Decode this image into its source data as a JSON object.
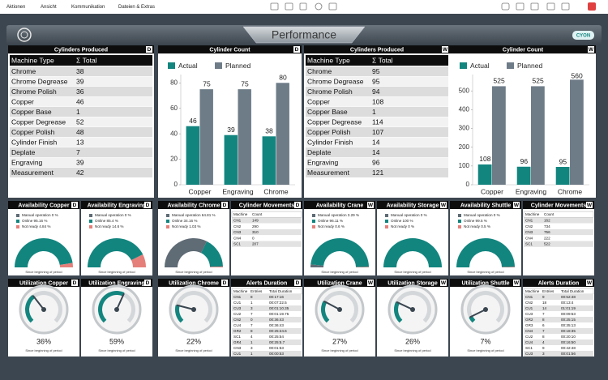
{
  "menu": [
    "Aktionen",
    "Ansicht",
    "Kommunikation",
    "Dateien & Extras"
  ],
  "header": {
    "title": "Performance",
    "badge": "CYON"
  },
  "tables": [
    {
      "title": "Cylinders Produced",
      "badge": "D",
      "columns": [
        "Machine Type",
        "Σ Total"
      ],
      "rows": [
        [
          "Chrome",
          38
        ],
        [
          "Chrome Degrease",
          39
        ],
        [
          "Chrome Polish",
          36
        ],
        [
          "Copper",
          46
        ],
        [
          "Copper Base",
          1
        ],
        [
          "Copper Degrease",
          52
        ],
        [
          "Copper Polish",
          48
        ],
        [
          "Cylinder Finish",
          13
        ],
        [
          "Deplate",
          7
        ],
        [
          "Engraving",
          39
        ],
        [
          "Measurement",
          42
        ]
      ]
    },
    {
      "title": "Cylinders Produced",
      "badge": "W",
      "columns": [
        "Machine Type",
        "Σ Total"
      ],
      "rows": [
        [
          "Chrome",
          95
        ],
        [
          "Chrome Degrease",
          95
        ],
        [
          "Chrome Polish",
          94
        ],
        [
          "Copper",
          108
        ],
        [
          "Copper Base",
          1
        ],
        [
          "Copper Degrease",
          114
        ],
        [
          "Copper Polish",
          107
        ],
        [
          "Cylinder Finish",
          14
        ],
        [
          "Deplate",
          14
        ],
        [
          "Engraving",
          96
        ],
        [
          "Measurement",
          121
        ]
      ]
    }
  ],
  "bar_charts": [
    {
      "type": "bar",
      "title": "Cylinder Count",
      "badge": "D",
      "categories": [
        "Copper",
        "Engraving",
        "Chrome"
      ],
      "series": [
        {
          "name": "Actual",
          "color": "#13857f",
          "values": [
            46,
            39,
            38
          ]
        },
        {
          "name": "Planned",
          "color": "#6e7c88",
          "values": [
            75,
            75,
            80
          ]
        }
      ],
      "ylim": [
        0,
        84
      ],
      "yticks": [
        0,
        20,
        40,
        60,
        80
      ]
    },
    {
      "type": "bar",
      "title": "Cylinder Count",
      "badge": "W",
      "categories": [
        "Copper",
        "Engraving",
        "Chrome"
      ],
      "series": [
        {
          "name": "Actual",
          "color": "#13857f",
          "values": [
            108,
            96,
            95
          ]
        },
        {
          "name": "Planned",
          "color": "#6e7c88",
          "values": [
            525,
            525,
            560
          ]
        }
      ],
      "ylim": [
        0,
        570
      ],
      "yticks": [
        0,
        100,
        200,
        300,
        400,
        500
      ]
    }
  ],
  "availability_colors": [
    "#5f6b75",
    "#13857f",
    "#e57f7a"
  ],
  "availability": [
    {
      "title": "Availability Copper",
      "badge": "D",
      "range": [
        0,
        100
      ],
      "values": [
        0,
        95.16,
        4.84
      ],
      "value_labels": [
        "Manual operation 0 %",
        "Online 95.16 %",
        "Not ready 4.84 %"
      ],
      "caption": "Since beginning of period"
    },
    {
      "title": "Availability Engraving",
      "badge": "D",
      "range": [
        0,
        100
      ],
      "values": [
        0,
        85.4,
        14.6
      ],
      "value_labels": [
        "Manual operation 0 %",
        "Online 85.4 %",
        "Not ready 14.6 %"
      ],
      "caption": "Since beginning of period"
    },
    {
      "title": "Availability Chrome",
      "badge": "D",
      "range": [
        0,
        100
      ],
      "values": [
        64.81,
        34.16,
        1.03
      ],
      "value_labels": [
        "Manual operation 64.81 %",
        "Online 34.16 %",
        "Not ready 1.03 %"
      ],
      "caption": "Since beginning of period"
    },
    {
      "title": "Availability Crane",
      "badge": "W",
      "range": [
        0,
        100
      ],
      "values": [
        3.29,
        96.11,
        0.6
      ],
      "value_labels": [
        "Manual operation 3.29 %",
        "Online 96.11 %",
        "Not ready 0.6 %"
      ],
      "caption": "Since beginning of period"
    },
    {
      "title": "Availability Storage",
      "badge": "W",
      "range": [
        0,
        100
      ],
      "values": [
        0,
        100,
        0
      ],
      "value_labels": [
        "Manual operation 0 %",
        "Online 100 %",
        "Not ready 0 %"
      ],
      "caption": "Since beginning of period"
    },
    {
      "title": "Availability Shuttle",
      "badge": "W",
      "range": [
        0,
        100
      ],
      "values": [
        0,
        99.5,
        0.5
      ],
      "value_labels": [
        "Manual operation 0 %",
        "Online 99.5 %",
        "Not ready 0.5 %"
      ],
      "caption": "Since beginning of period"
    }
  ],
  "movements": [
    {
      "title": "Cylinder Movements",
      "badge": "D",
      "columns": [
        "Machine",
        "Count"
      ],
      "rows": [
        [
          "CN1",
          149
        ],
        [
          "CN2",
          290
        ],
        [
          "CN3",
          310
        ],
        [
          "CN4",
          0
        ],
        [
          "SC1",
          207
        ]
      ]
    },
    {
      "title": "Cylinder Movements",
      "badge": "W",
      "columns": [
        "Machine",
        "Count"
      ],
      "rows": [
        [
          "CN1",
          162
        ],
        [
          "CN2",
          734
        ],
        [
          "CN3",
          756
        ],
        [
          "CN4",
          222
        ],
        [
          "SC1",
          522
        ]
      ]
    }
  ],
  "utilization": [
    {
      "title": "Utilization Copper",
      "badge": "D",
      "range": [
        0,
        100
      ],
      "value": 36,
      "value_label": "36%",
      "caption": "Since beginning of period"
    },
    {
      "title": "Utilization Engraving",
      "badge": "D",
      "range": [
        0,
        100
      ],
      "value": 59,
      "value_label": "59%",
      "caption": "Since beginning of period"
    },
    {
      "title": "Utilization Chrome",
      "badge": "D",
      "range": [
        0,
        100
      ],
      "value": 22,
      "value_label": "22%",
      "caption": "Since beginning of period"
    },
    {
      "title": "Utilization Crane",
      "badge": "W",
      "range": [
        0,
        100
      ],
      "value": 27,
      "value_label": "27%",
      "caption": "Since beginning of period"
    },
    {
      "title": "Utilization Storage",
      "badge": "W",
      "range": [
        0,
        100
      ],
      "value": 26,
      "value_label": "26%",
      "caption": "Since beginning of period"
    },
    {
      "title": "Utilization Shuttle",
      "badge": "W",
      "range": [
        0,
        100
      ],
      "value": 7,
      "value_label": "7%",
      "caption": "Since beginning of period"
    }
  ],
  "alerts": [
    {
      "title": "Alerts Duration",
      "badge": "D",
      "columns": [
        "Machine",
        "Entries",
        "Total Duration"
      ],
      "rows": [
        [
          "CN1",
          8,
          "00:17:16"
        ],
        [
          "CU1",
          1,
          "00:07:22.5"
        ],
        [
          "CU3",
          3,
          "00:01:10.35"
        ],
        [
          "CU2",
          7,
          "00:01:19.75"
        ],
        [
          "CN2",
          0,
          "00:36:43"
        ],
        [
          "CU4",
          7,
          "00:36:43"
        ],
        [
          "GR2",
          8,
          "00:25:24.6"
        ],
        [
          "SC1",
          4,
          "00:25:54"
        ],
        [
          "GR4",
          1,
          "00:25:5.7"
        ],
        [
          "CN3",
          3,
          "00:01:53"
        ],
        [
          "CU1",
          1,
          "00:00:53"
        ]
      ]
    },
    {
      "title": "Alerts Duration",
      "badge": "W",
      "columns": [
        "Machine",
        "Entries",
        "Total Duration"
      ],
      "rows": [
        [
          "CN1",
          9,
          "00:52:48"
        ],
        [
          "CN2",
          18,
          "00:13:4"
        ],
        [
          "CU1",
          14,
          "01:01:19"
        ],
        [
          "CU3",
          7,
          "00:09:53"
        ],
        [
          "GR2",
          8,
          "00:25:15"
        ],
        [
          "GR3",
          6,
          "00:35:13"
        ],
        [
          "CN4",
          7,
          "00:18:35"
        ],
        [
          "CU2",
          8,
          "00:20:10"
        ],
        [
          "CU4",
          4,
          "00:16:50"
        ],
        [
          "SC1",
          9,
          "00:42:48"
        ],
        [
          "CU3",
          3,
          "00:01:56"
        ]
      ]
    }
  ]
}
